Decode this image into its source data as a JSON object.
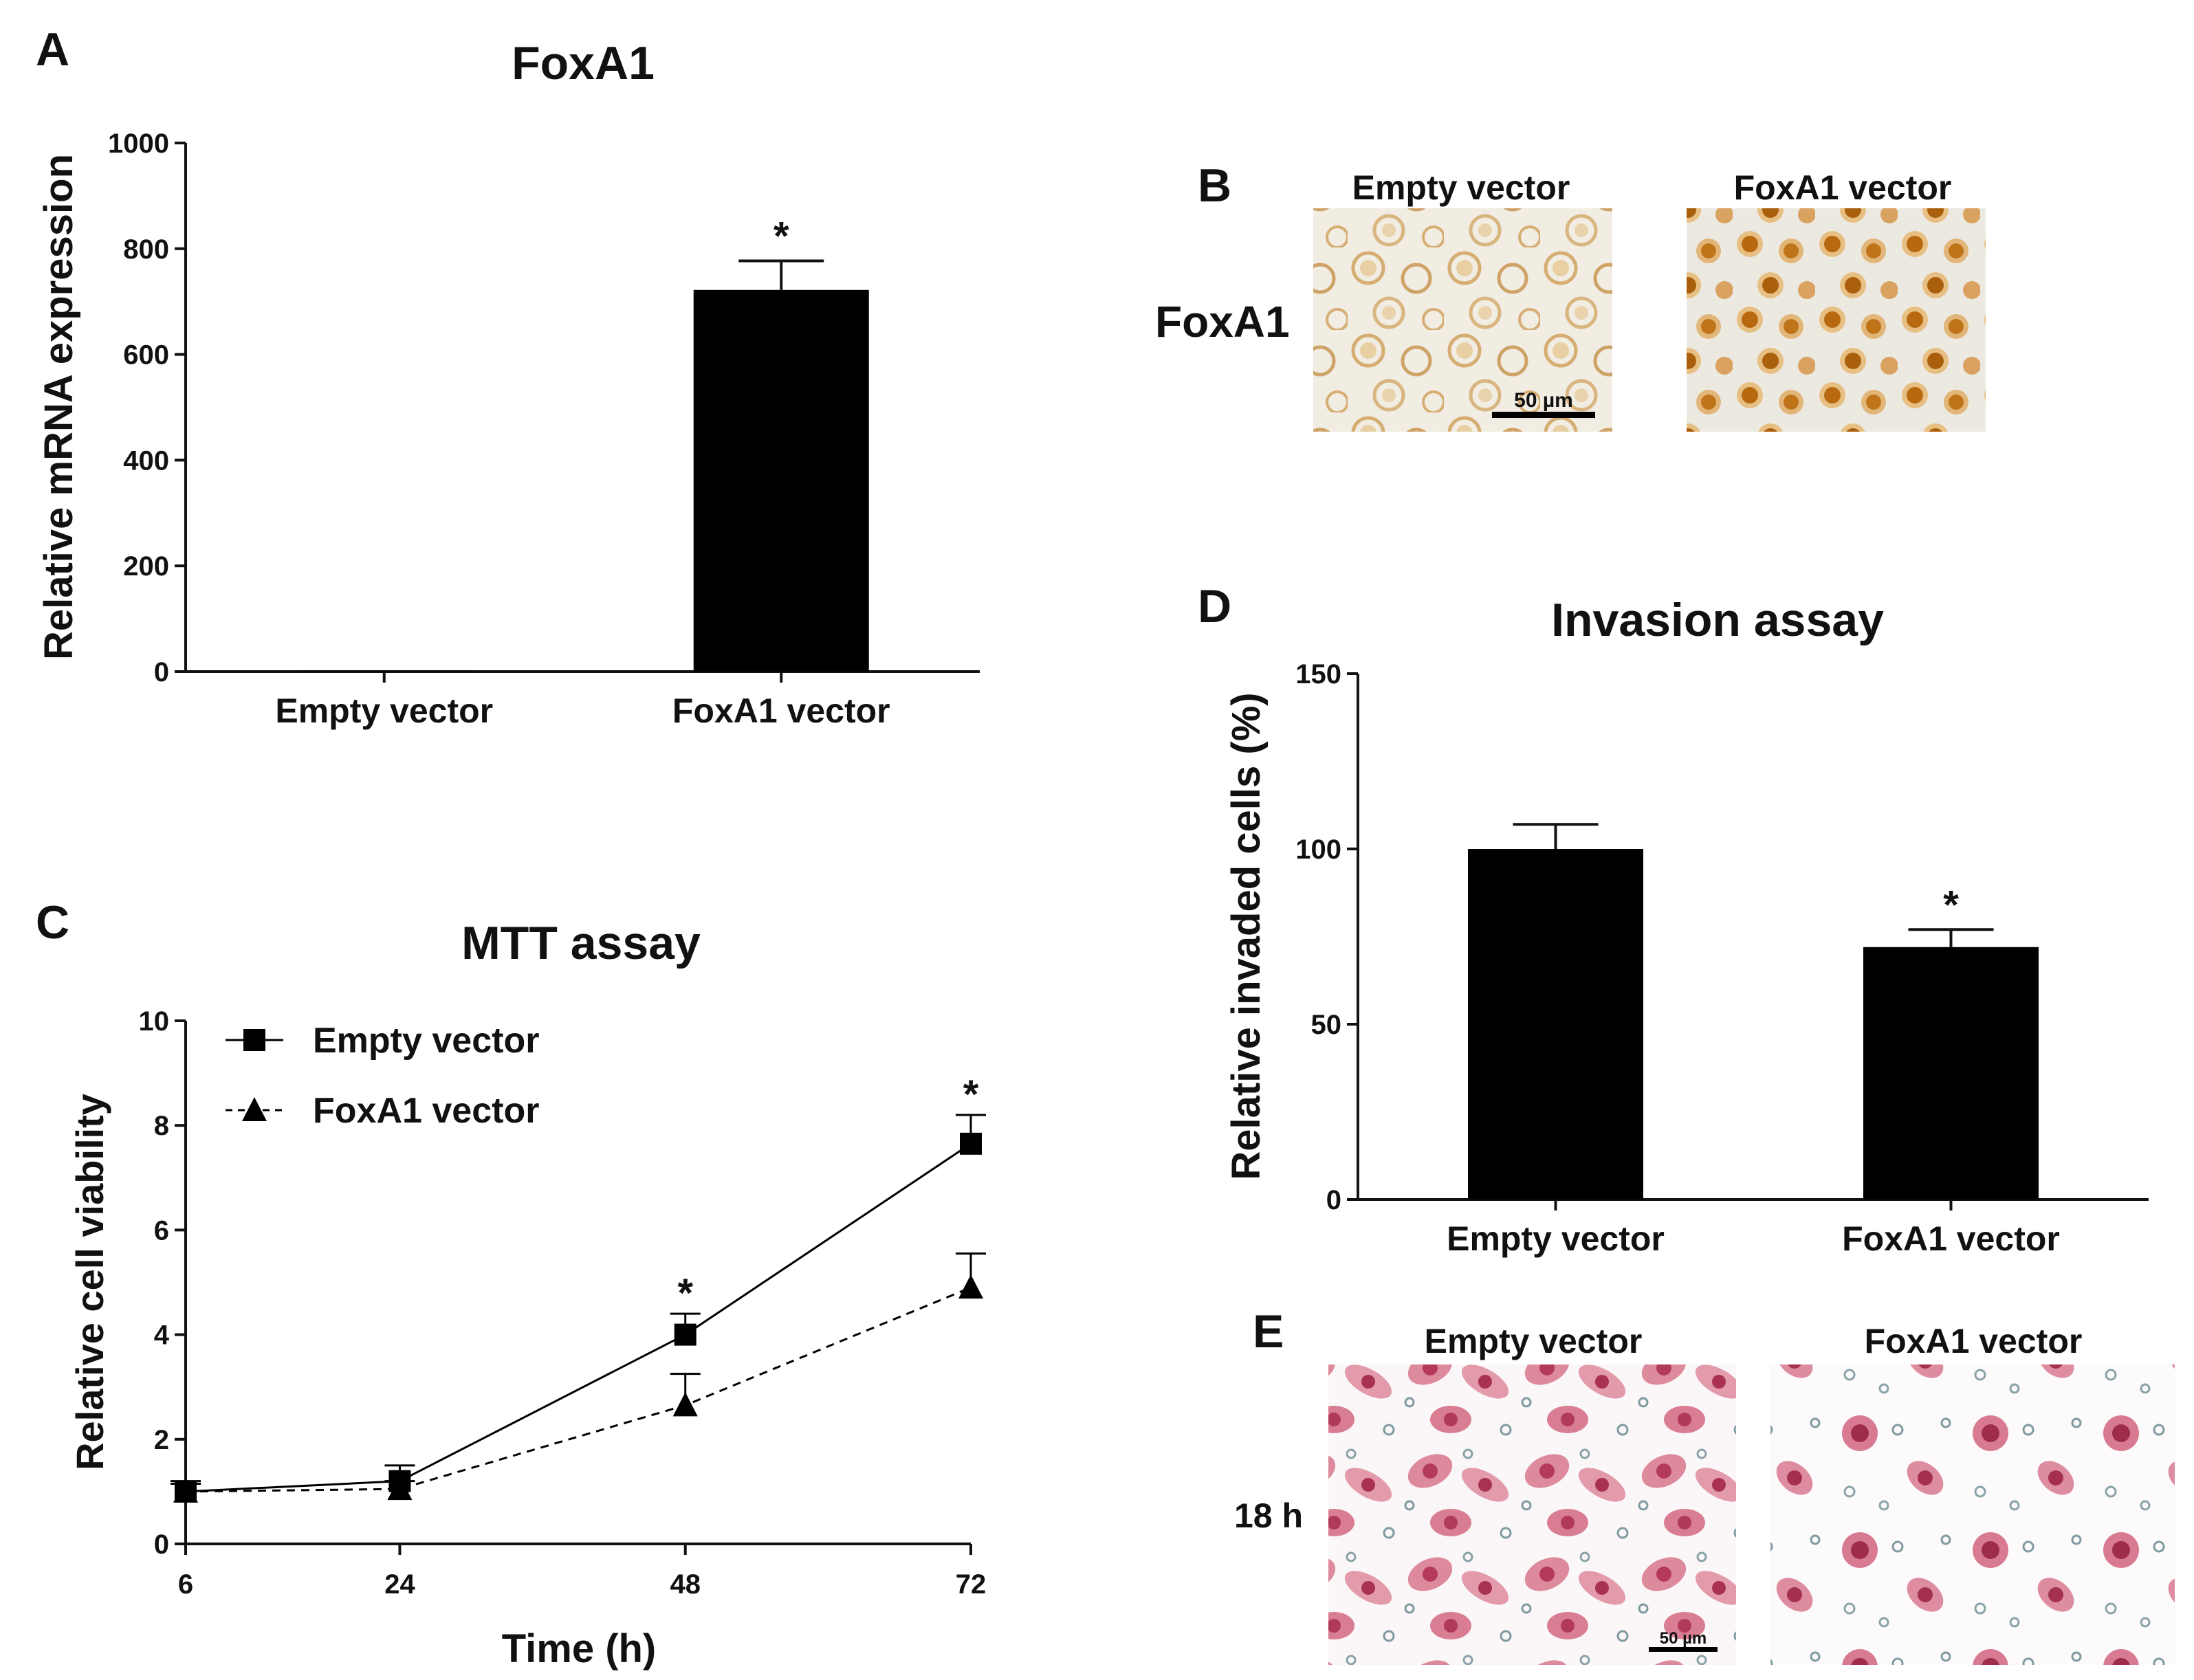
{
  "colors": {
    "bar": "#000000",
    "axis": "#111111",
    "text": "#111111",
    "stain_b_empty": "#d8b27a",
    "stain_b_foxa1": "#c67a1e",
    "stain_e": "#c0405e"
  },
  "panels": {
    "A": {
      "letter": "A"
    },
    "B": {
      "letter": "B",
      "row_label": "FoxA1",
      "col1": "Empty vector",
      "col2": "FoxA1 vector",
      "scale_bar": "50 µm"
    },
    "C": {
      "letter": "C"
    },
    "D": {
      "letter": "D"
    },
    "E": {
      "letter": "E",
      "row_label": "18 h",
      "col1": "Empty vector",
      "col2": "FoxA1 vector",
      "scale_bar": "50 µm"
    }
  },
  "chart_data": [
    {
      "id": "A",
      "type": "bar",
      "title": "FoxA1",
      "xlabel": "",
      "ylabel": "Relative mRNA expression",
      "ylim": [
        0,
        1000
      ],
      "yticks": [
        0,
        200,
        400,
        600,
        800,
        1000
      ],
      "categories": [
        "Empty vector",
        "FoxA1 vector"
      ],
      "values": [
        1,
        722
      ],
      "errors": [
        0,
        55
      ],
      "significance": [
        "",
        "*"
      ]
    },
    {
      "id": "C",
      "type": "line",
      "title": "MTT assay",
      "xlabel": "Time (h)",
      "ylabel": "Relative cell viability",
      "ylim": [
        0,
        10
      ],
      "yticks": [
        0,
        2,
        4,
        6,
        8,
        10
      ],
      "x": [
        6,
        24,
        48,
        72
      ],
      "legend_position": "top-left",
      "series": [
        {
          "name": "Empty vector",
          "marker": "square",
          "line": "solid",
          "values": [
            1.0,
            1.2,
            4.0,
            7.65
          ],
          "errors": [
            0.2,
            0.3,
            0.4,
            0.55
          ]
        },
        {
          "name": "FoxA1 vector",
          "marker": "triangle",
          "line": "dashed",
          "values": [
            1.0,
            1.05,
            2.65,
            4.9
          ],
          "errors": [
            0.15,
            0.15,
            0.6,
            0.65
          ]
        }
      ],
      "significance": [
        "",
        "",
        "*",
        "*"
      ]
    },
    {
      "id": "D",
      "type": "bar",
      "title": "Invasion assay",
      "xlabel": "",
      "ylabel": "Relative invaded cells (%)",
      "ylim": [
        0,
        150
      ],
      "yticks": [
        0,
        50,
        100,
        150
      ],
      "categories": [
        "Empty vector",
        "FoxA1 vector"
      ],
      "values": [
        100,
        72
      ],
      "errors": [
        7,
        5
      ],
      "significance": [
        "",
        "*"
      ]
    }
  ]
}
